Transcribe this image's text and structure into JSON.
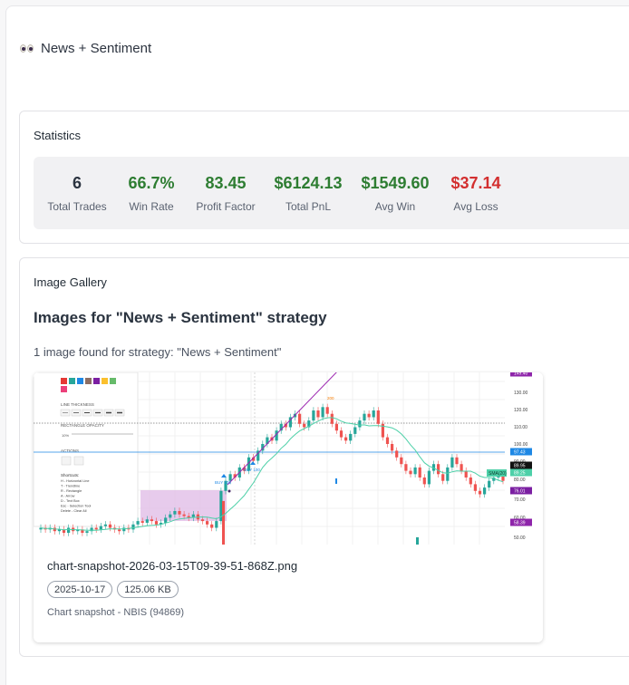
{
  "page": {
    "title": "News + Sentiment"
  },
  "statistics": {
    "title": "Statistics",
    "items": [
      {
        "value": "6",
        "label": "Total Trades",
        "color": "#2b3440"
      },
      {
        "value": "66.7%",
        "label": "Win Rate",
        "color": "#2e7d32"
      },
      {
        "value": "83.45",
        "label": "Profit Factor",
        "color": "#2e7d32"
      },
      {
        "value": "$6124.13",
        "label": "Total PnL",
        "color": "#2e7d32"
      },
      {
        "value": "$1549.60",
        "label": "Avg Win",
        "color": "#2e7d32"
      },
      {
        "value": "$37.14",
        "label": "Avg Loss",
        "color": "#d32f2f"
      }
    ]
  },
  "gallery": {
    "title": "Image Gallery",
    "heading": "Images for \"News + Sentiment\" strategy",
    "count_text": "1 image found for strategy: \"News + Sentiment\"",
    "image": {
      "file_name": "chart-snapshot-2026-03-15T09-39-51-868Z.png",
      "date": "2025-10-17",
      "size": "125.06 KB",
      "caption": "Chart snapshot - NBIS (94869)",
      "thumbnail": {
        "toolbar_labels": [
          "LINE THICKNESS",
          "RECTANGLE OPACITY",
          "ACTIONS",
          "Shortcuts:"
        ],
        "opacity_value": "10%",
        "shortcuts": [
          "H - Horizontal Line",
          "T - Trendline",
          "R - Rectangle",
          "A - Arrow",
          "D - Text Box",
          "Esc - Selection Tool",
          "Delete - Clear All"
        ],
        "price_ticks": [
          "130.00",
          "120.00",
          "110.00",
          "100.00",
          "90.00",
          "80.00",
          "70.00",
          "60.00",
          "50.00"
        ],
        "price_tags": [
          "97.43",
          "89.95",
          "89.25",
          "76.01",
          "58.39",
          "149.40"
        ],
        "sma_label": "SMA(20)",
        "buy_labels": [
          "BUY 100",
          "BUY 100"
        ],
        "sell_label": "200",
        "colors": {
          "up": "#26a69a",
          "down": "#ef5350",
          "sma": "#4dd0a8",
          "trend": "#9c27b0",
          "rect": "#e1bee7",
          "blue_line": "#1e88e5"
        }
      }
    }
  }
}
